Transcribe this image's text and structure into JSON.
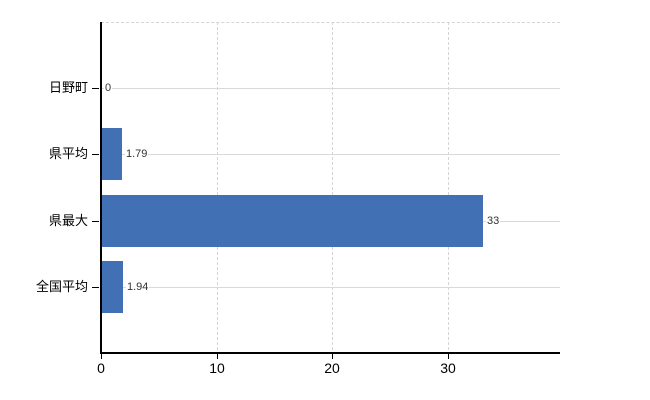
{
  "chart_data": {
    "type": "bar",
    "orientation": "horizontal",
    "title": "",
    "xlabel": "",
    "ylabel": "",
    "categories": [
      "日野町",
      "県平均",
      "県最大",
      "全国平均"
    ],
    "values": [
      0,
      1.79,
      33,
      1.94
    ],
    "value_labels": [
      "0",
      "1.79",
      "33",
      "1.94"
    ],
    "x_ticks": [
      "0",
      "10",
      "20",
      "30"
    ],
    "x_tick_values": [
      0,
      10,
      20,
      30
    ],
    "xlim": [
      0,
      39.7
    ],
    "grid": true,
    "legend": false,
    "colors": {
      "bar": "#4170b4",
      "axis": "#000000",
      "h_gridline": "#d9d9d9",
      "v_gridline": "#d4d4d4",
      "category_label": "#000000",
      "value_label": "#333333",
      "background": "#ffffff"
    }
  }
}
